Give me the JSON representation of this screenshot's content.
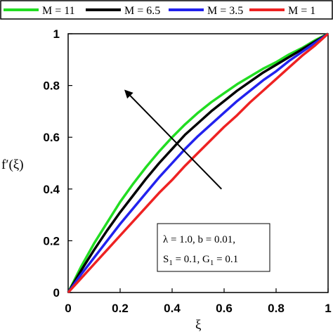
{
  "chart_data": {
    "type": "line",
    "title": "",
    "xlabel": "ξ",
    "ylabel": "f′(ξ)",
    "xlim": [
      0,
      1
    ],
    "ylim": [
      0,
      1
    ],
    "xticks": [
      "0",
      "0.2",
      "0.4",
      "0.6",
      "0.8",
      "1"
    ],
    "yticks": [
      "0",
      "0.2",
      "0.4",
      "0.6",
      "0.8",
      "1"
    ],
    "grid": false,
    "legend_placement": "top",
    "x": [
      0,
      0.05,
      0.1,
      0.15,
      0.2,
      0.25,
      0.3,
      0.35,
      0.4,
      0.45,
      0.5,
      0.55,
      0.6,
      0.65,
      0.7,
      0.75,
      0.8,
      0.85,
      0.9,
      0.95,
      1.0
    ],
    "series": [
      {
        "name": "M = 11",
        "color": "#22dd22",
        "values": [
          0,
          0.1,
          0.19,
          0.27,
          0.35,
          0.42,
          0.485,
          0.545,
          0.6,
          0.65,
          0.695,
          0.735,
          0.77,
          0.805,
          0.835,
          0.865,
          0.89,
          0.92,
          0.945,
          0.975,
          1.0
        ]
      },
      {
        "name": "M = 6.5",
        "color": "#000000",
        "values": [
          0,
          0.085,
          0.165,
          0.24,
          0.31,
          0.375,
          0.44,
          0.5,
          0.555,
          0.61,
          0.655,
          0.7,
          0.74,
          0.78,
          0.815,
          0.85,
          0.88,
          0.91,
          0.94,
          0.97,
          1.0
        ]
      },
      {
        "name": "M = 3.5",
        "color": "#2222ee",
        "values": [
          0,
          0.07,
          0.135,
          0.2,
          0.265,
          0.325,
          0.385,
          0.445,
          0.5,
          0.555,
          0.605,
          0.65,
          0.695,
          0.74,
          0.78,
          0.82,
          0.855,
          0.895,
          0.93,
          0.965,
          1.0
        ]
      },
      {
        "name": "M = 1",
        "color": "#ee2222",
        "values": [
          0,
          0.055,
          0.11,
          0.165,
          0.22,
          0.275,
          0.33,
          0.385,
          0.435,
          0.49,
          0.54,
          0.59,
          0.64,
          0.685,
          0.735,
          0.78,
          0.825,
          0.87,
          0.915,
          0.955,
          1.0
        ]
      }
    ],
    "annotation_lines": [
      "λ = 1.0, b = 0.01,",
      "S",
      "1",
      " = 0.1, G",
      "1",
      " = 0.1"
    ],
    "arrow": {
      "from": [
        0.59,
        0.4
      ],
      "to": [
        0.22,
        0.78
      ]
    }
  }
}
